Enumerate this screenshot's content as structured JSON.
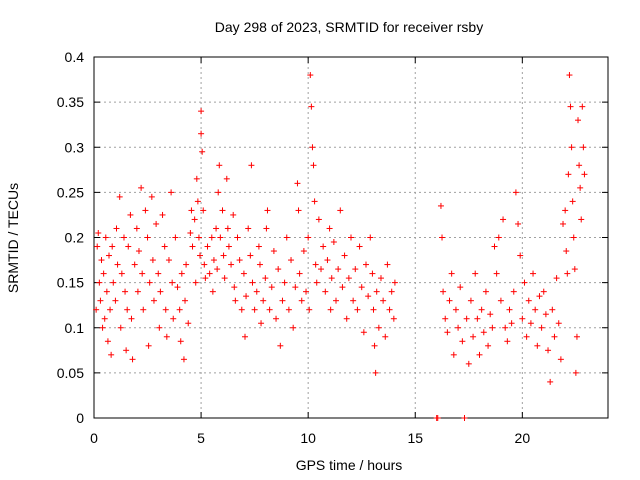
{
  "chart_data": {
    "type": "scatter",
    "title": "Day 298 of 2023, SRMTID for receiver rsby",
    "xlabel": "GPS time / hours",
    "ylabel": "SRMTID / TECUs",
    "xlim": [
      0,
      24
    ],
    "ylim": [
      0,
      0.4
    ],
    "x_ticks": [
      0,
      5,
      10,
      15,
      20
    ],
    "x_tick_labels": [
      "0",
      "5",
      "10",
      "15",
      "20"
    ],
    "y_ticks": [
      0,
      0.05,
      0.1,
      0.15,
      0.2,
      0.25,
      0.3,
      0.35,
      0.4
    ],
    "y_tick_labels": [
      "0",
      "0.05",
      "0.1",
      "0.15",
      "0.2",
      "0.25",
      "0.3",
      "0.35",
      "0.4"
    ],
    "grid": true,
    "marker": "+",
    "color": "#ff0000",
    "series": [
      {
        "points": [
          [
            0.1,
            0.12
          ],
          [
            0.15,
            0.19
          ],
          [
            0.2,
            0.205
          ],
          [
            0.25,
            0.15
          ],
          [
            0.3,
            0.13
          ],
          [
            0.35,
            0.175
          ],
          [
            0.4,
            0.1
          ],
          [
            0.45,
            0.16
          ],
          [
            0.5,
            0.11
          ],
          [
            0.55,
            0.2
          ],
          [
            0.6,
            0.14
          ],
          [
            0.65,
            0.085
          ],
          [
            0.7,
            0.18
          ],
          [
            0.75,
            0.12
          ],
          [
            0.8,
            0.07
          ],
          [
            0.85,
            0.19
          ],
          [
            0.9,
            0.15
          ],
          [
            1.0,
            0.13
          ],
          [
            1.05,
            0.21
          ],
          [
            1.1,
            0.17
          ],
          [
            1.2,
            0.245
          ],
          [
            1.25,
            0.1
          ],
          [
            1.3,
            0.16
          ],
          [
            1.4,
            0.2
          ],
          [
            1.45,
            0.14
          ],
          [
            1.5,
            0.075
          ],
          [
            1.55,
            0.12
          ],
          [
            1.6,
            0.19
          ],
          [
            1.7,
            0.225
          ],
          [
            1.75,
            0.11
          ],
          [
            1.8,
            0.065
          ],
          [
            1.9,
            0.17
          ],
          [
            2.0,
            0.21
          ],
          [
            2.05,
            0.14
          ],
          [
            2.1,
            0.185
          ],
          [
            2.2,
            0.255
          ],
          [
            2.25,
            0.16
          ],
          [
            2.3,
            0.12
          ],
          [
            2.4,
            0.23
          ],
          [
            2.5,
            0.2
          ],
          [
            2.55,
            0.08
          ],
          [
            2.6,
            0.15
          ],
          [
            2.7,
            0.245
          ],
          [
            2.75,
            0.175
          ],
          [
            2.8,
            0.13
          ],
          [
            2.9,
            0.215
          ],
          [
            3.0,
            0.16
          ],
          [
            3.05,
            0.1
          ],
          [
            3.1,
            0.14
          ],
          [
            3.2,
            0.225
          ],
          [
            3.3,
            0.19
          ],
          [
            3.35,
            0.12
          ],
          [
            3.4,
            0.09
          ],
          [
            3.5,
            0.175
          ],
          [
            3.6,
            0.25
          ],
          [
            3.65,
            0.15
          ],
          [
            3.7,
            0.11
          ],
          [
            3.8,
            0.2
          ],
          [
            3.9,
            0.145
          ],
          [
            4.0,
            0.12
          ],
          [
            4.05,
            0.085
          ],
          [
            4.1,
            0.16
          ],
          [
            4.2,
            0.065
          ],
          [
            4.25,
            0.13
          ],
          [
            4.3,
            0.17
          ],
          [
            4.4,
            0.105
          ],
          [
            4.5,
            0.205
          ],
          [
            4.55,
            0.23
          ],
          [
            4.6,
            0.19
          ],
          [
            4.7,
            0.22
          ],
          [
            4.75,
            0.15
          ],
          [
            4.8,
            0.265
          ],
          [
            4.85,
            0.24
          ],
          [
            4.9,
            0.2
          ],
          [
            4.95,
            0.18
          ],
          [
            5.0,
            0.34
          ],
          [
            5.0,
            0.315
          ],
          [
            5.05,
            0.295
          ],
          [
            5.1,
            0.23
          ],
          [
            5.15,
            0.17
          ],
          [
            5.2,
            0.155
          ],
          [
            5.3,
            0.19
          ],
          [
            5.4,
            0.16
          ],
          [
            5.5,
            0.2
          ],
          [
            5.55,
            0.14
          ],
          [
            5.6,
            0.175
          ],
          [
            5.7,
            0.21
          ],
          [
            5.75,
            0.165
          ],
          [
            5.8,
            0.25
          ],
          [
            5.85,
            0.28
          ],
          [
            5.9,
            0.2
          ],
          [
            6.0,
            0.23
          ],
          [
            6.05,
            0.18
          ],
          [
            6.1,
            0.155
          ],
          [
            6.2,
            0.265
          ],
          [
            6.25,
            0.21
          ],
          [
            6.3,
            0.19
          ],
          [
            6.4,
            0.17
          ],
          [
            6.5,
            0.225
          ],
          [
            6.55,
            0.145
          ],
          [
            6.6,
            0.13
          ],
          [
            6.7,
            0.2
          ],
          [
            6.8,
            0.175
          ],
          [
            6.9,
            0.12
          ],
          [
            7.0,
            0.16
          ],
          [
            7.05,
            0.09
          ],
          [
            7.1,
            0.135
          ],
          [
            7.2,
            0.21
          ],
          [
            7.3,
            0.18
          ],
          [
            7.35,
            0.28
          ],
          [
            7.4,
            0.15
          ],
          [
            7.5,
            0.12
          ],
          [
            7.6,
            0.14
          ],
          [
            7.7,
            0.19
          ],
          [
            7.75,
            0.17
          ],
          [
            7.8,
            0.105
          ],
          [
            7.9,
            0.13
          ],
          [
            8.0,
            0.155
          ],
          [
            8.05,
            0.21
          ],
          [
            8.1,
            0.23
          ],
          [
            8.2,
            0.12
          ],
          [
            8.3,
            0.145
          ],
          [
            8.4,
            0.185
          ],
          [
            8.5,
            0.11
          ],
          [
            8.6,
            0.165
          ],
          [
            8.7,
            0.08
          ],
          [
            8.8,
            0.13
          ],
          [
            8.9,
            0.15
          ],
          [
            9.0,
            0.2
          ],
          [
            9.1,
            0.12
          ],
          [
            9.2,
            0.175
          ],
          [
            9.3,
            0.1
          ],
          [
            9.4,
            0.145
          ],
          [
            9.5,
            0.26
          ],
          [
            9.55,
            0.23
          ],
          [
            9.6,
            0.16
          ],
          [
            9.7,
            0.13
          ],
          [
            9.8,
            0.185
          ],
          [
            9.9,
            0.14
          ],
          [
            10.0,
            0.2
          ],
          [
            10.05,
            0.12
          ],
          [
            10.1,
            0.38
          ],
          [
            10.15,
            0.345
          ],
          [
            10.2,
            0.3
          ],
          [
            10.25,
            0.28
          ],
          [
            10.3,
            0.24
          ],
          [
            10.35,
            0.17
          ],
          [
            10.4,
            0.15
          ],
          [
            10.5,
            0.22
          ],
          [
            10.6,
            0.165
          ],
          [
            10.7,
            0.19
          ],
          [
            10.8,
            0.14
          ],
          [
            10.9,
            0.175
          ],
          [
            11.0,
            0.21
          ],
          [
            11.05,
            0.12
          ],
          [
            11.1,
            0.155
          ],
          [
            11.2,
            0.195
          ],
          [
            11.3,
            0.13
          ],
          [
            11.4,
            0.165
          ],
          [
            11.5,
            0.23
          ],
          [
            11.6,
            0.145
          ],
          [
            11.7,
            0.18
          ],
          [
            11.8,
            0.11
          ],
          [
            11.9,
            0.155
          ],
          [
            12.0,
            0.2
          ],
          [
            12.1,
            0.13
          ],
          [
            12.2,
            0.165
          ],
          [
            12.3,
            0.12
          ],
          [
            12.4,
            0.19
          ],
          [
            12.5,
            0.145
          ],
          [
            12.6,
            0.095
          ],
          [
            12.7,
            0.17
          ],
          [
            12.8,
            0.135
          ],
          [
            12.9,
            0.2
          ],
          [
            13.0,
            0.16
          ],
          [
            13.05,
            0.12
          ],
          [
            13.1,
            0.08
          ],
          [
            13.15,
            0.05
          ],
          [
            13.2,
            0.14
          ],
          [
            13.3,
            0.1
          ],
          [
            13.4,
            0.155
          ],
          [
            13.5,
            0.13
          ],
          [
            13.6,
            0.09
          ],
          [
            13.7,
            0.17
          ],
          [
            13.8,
            0.12
          ],
          [
            13.9,
            0.14
          ],
          [
            14.0,
            0.11
          ],
          [
            14.05,
            0.15
          ],
          [
            16.0,
            0.0
          ],
          [
            16.05,
            0.0
          ],
          [
            16.2,
            0.235
          ],
          [
            16.25,
            0.2
          ],
          [
            16.3,
            0.14
          ],
          [
            16.4,
            0.11
          ],
          [
            16.5,
            0.095
          ],
          [
            16.6,
            0.13
          ],
          [
            16.7,
            0.16
          ],
          [
            16.8,
            0.07
          ],
          [
            16.9,
            0.12
          ],
          [
            17.0,
            0.1
          ],
          [
            17.1,
            0.145
          ],
          [
            17.2,
            0.085
          ],
          [
            17.3,
            0.0
          ],
          [
            17.4,
            0.11
          ],
          [
            17.5,
            0.06
          ],
          [
            17.6,
            0.13
          ],
          [
            17.7,
            0.09
          ],
          [
            17.8,
            0.16
          ],
          [
            17.9,
            0.11
          ],
          [
            18.0,
            0.07
          ],
          [
            18.1,
            0.12
          ],
          [
            18.2,
            0.095
          ],
          [
            18.3,
            0.14
          ],
          [
            18.4,
            0.08
          ],
          [
            18.5,
            0.115
          ],
          [
            18.6,
            0.1
          ],
          [
            18.7,
            0.19
          ],
          [
            18.8,
            0.16
          ],
          [
            18.9,
            0.2
          ],
          [
            19.0,
            0.13
          ],
          [
            19.1,
            0.22
          ],
          [
            19.2,
            0.1
          ],
          [
            19.3,
            0.085
          ],
          [
            19.4,
            0.12
          ],
          [
            19.5,
            0.105
          ],
          [
            19.6,
            0.14
          ],
          [
            19.7,
            0.25
          ],
          [
            19.8,
            0.215
          ],
          [
            19.9,
            0.18
          ],
          [
            20.0,
            0.11
          ],
          [
            20.1,
            0.15
          ],
          [
            20.2,
            0.09
          ],
          [
            20.3,
            0.13
          ],
          [
            20.4,
            0.105
          ],
          [
            20.5,
            0.16
          ],
          [
            20.6,
            0.12
          ],
          [
            20.7,
            0.08
          ],
          [
            20.8,
            0.135
          ],
          [
            20.9,
            0.1
          ],
          [
            21.0,
            0.14
          ],
          [
            21.1,
            0.115
          ],
          [
            21.2,
            0.075
          ],
          [
            21.3,
            0.04
          ],
          [
            21.4,
            0.12
          ],
          [
            21.5,
            0.09
          ],
          [
            21.6,
            0.155
          ],
          [
            21.7,
            0.105
          ],
          [
            21.8,
            0.065
          ],
          [
            21.9,
            0.215
          ],
          [
            22.0,
            0.23
          ],
          [
            22.05,
            0.185
          ],
          [
            22.1,
            0.16
          ],
          [
            22.15,
            0.27
          ],
          [
            22.2,
            0.38
          ],
          [
            22.25,
            0.345
          ],
          [
            22.3,
            0.3
          ],
          [
            22.35,
            0.24
          ],
          [
            22.4,
            0.2
          ],
          [
            22.45,
            0.165
          ],
          [
            22.5,
            0.05
          ],
          [
            22.55,
            0.09
          ],
          [
            22.6,
            0.33
          ],
          [
            22.65,
            0.28
          ],
          [
            22.7,
            0.255
          ],
          [
            22.75,
            0.22
          ],
          [
            22.8,
            0.345
          ],
          [
            22.85,
            0.3
          ],
          [
            22.9,
            0.27
          ]
        ]
      }
    ]
  }
}
